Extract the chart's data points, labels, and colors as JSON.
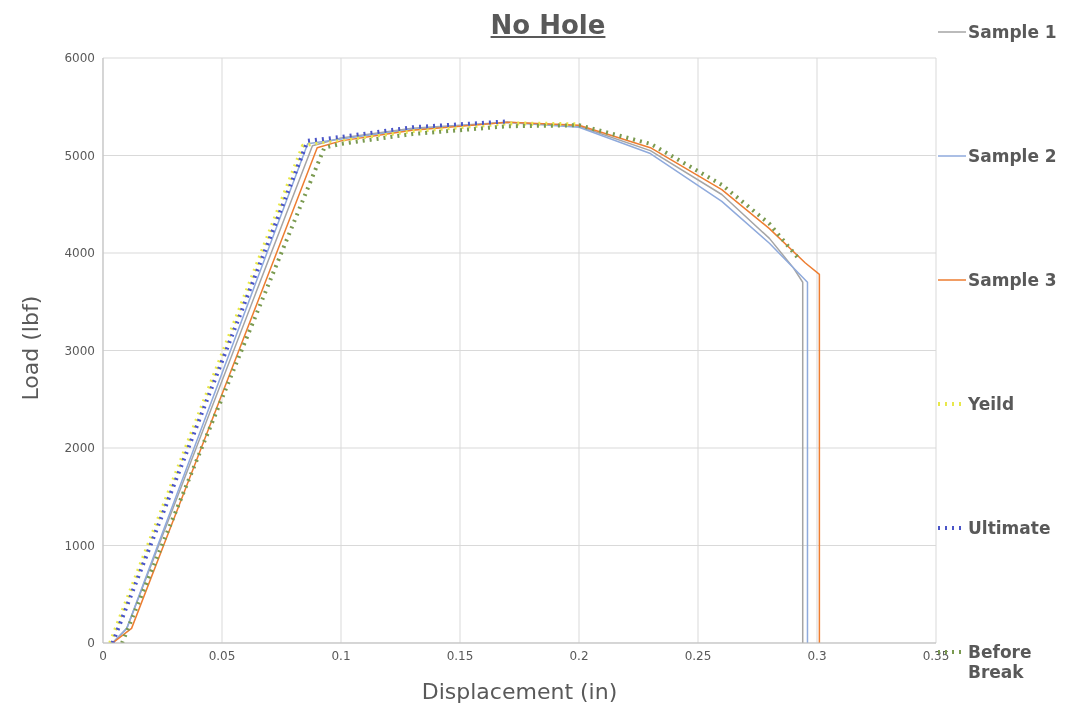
{
  "chart_data": {
    "type": "line",
    "title": "No Hole",
    "xlabel": "Displacement (in)",
    "ylabel": "Load (lbf)",
    "xlim": [
      0,
      0.35
    ],
    "xticks": [
      0,
      0.05,
      0.1,
      0.15,
      0.2,
      0.25,
      0.3,
      0.35
    ],
    "ylim": [
      0,
      6000
    ],
    "yticks": [
      0,
      1000,
      2000,
      3000,
      4000,
      5000,
      6000
    ],
    "grid": true,
    "legend": "right",
    "line_style": "solid",
    "marker": "none",
    "series": [
      {
        "name": "Sample 1",
        "color": "#a5a5a5",
        "x": [
          0.004,
          0.01,
          0.088,
          0.1,
          0.13,
          0.17,
          0.2,
          0.23,
          0.26,
          0.28,
          0.29,
          0.294,
          0.294
        ],
        "values": [
          0,
          150,
          5100,
          5180,
          5280,
          5340,
          5300,
          5050,
          4600,
          4150,
          3850,
          3700,
          0
        ]
      },
      {
        "name": "Sample 2",
        "color": "#8faadc",
        "x": [
          0.004,
          0.01,
          0.086,
          0.1,
          0.13,
          0.17,
          0.2,
          0.23,
          0.26,
          0.28,
          0.292,
          0.296,
          0.296
        ],
        "values": [
          0,
          150,
          5120,
          5170,
          5270,
          5340,
          5290,
          5020,
          4530,
          4100,
          3800,
          3700,
          0
        ]
      },
      {
        "name": "Sample 3",
        "color": "#ed7d31",
        "x": [
          0.004,
          0.012,
          0.09,
          0.1,
          0.13,
          0.17,
          0.2,
          0.23,
          0.26,
          0.28,
          0.295,
          0.301,
          0.301
        ],
        "values": [
          0,
          150,
          5080,
          5150,
          5260,
          5340,
          5310,
          5080,
          4650,
          4250,
          3900,
          3780,
          0
        ]
      },
      {
        "name": "Yeild",
        "color": "#e8e84a",
        "line_style": "dotted",
        "x": [
          0.003,
          0.084,
          0.09,
          0.13,
          0.17,
          0.2
        ],
        "values": [
          0,
          5100,
          5130,
          5250,
          5330,
          5320
        ]
      },
      {
        "name": "Ultimate",
        "color": "#4a55c8",
        "line_style": "dotted",
        "x": [
          0.004,
          0.086,
          0.1,
          0.13,
          0.17
        ],
        "values": [
          0,
          5150,
          5190,
          5290,
          5350
        ]
      },
      {
        "name": "Before Break",
        "color": "#7a9a50",
        "line_style": "dotted",
        "x": [
          0.008,
          0.093,
          0.1,
          0.13,
          0.17,
          0.2,
          0.23,
          0.26,
          0.28,
          0.292
        ],
        "values": [
          0,
          5080,
          5120,
          5220,
          5300,
          5310,
          5120,
          4700,
          4300,
          3950
        ]
      }
    ]
  }
}
